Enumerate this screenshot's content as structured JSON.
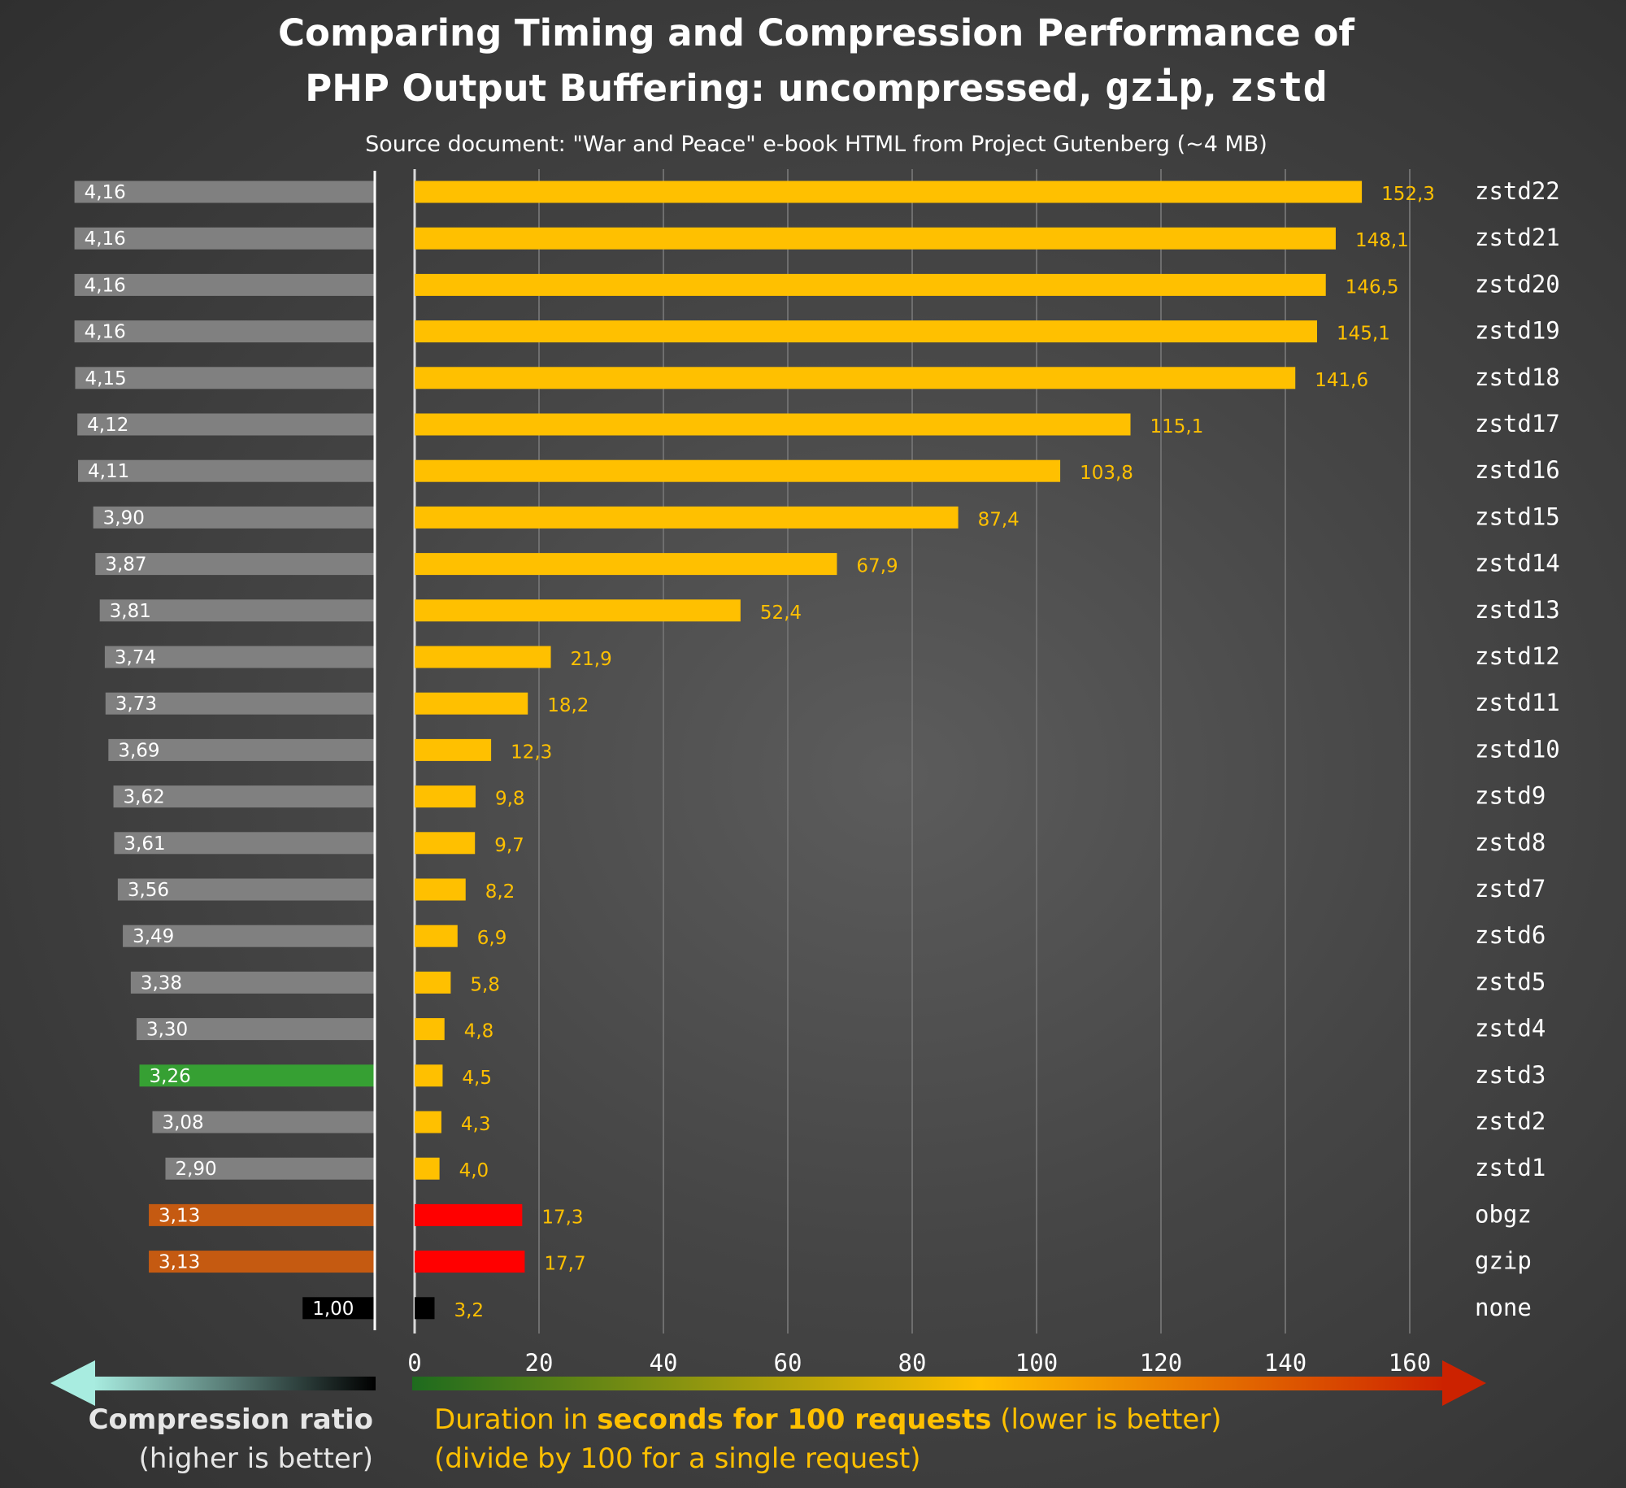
{
  "chart_data": {
    "type": "bar",
    "title_parts": [
      "Comparing Timing and Compression Performance of",
      "PHP Output Buffering:  uncompressed, ",
      "gzip",
      ", ",
      "zstd"
    ],
    "subtitle": "Source document: \"War and Peace\" e-book HTML from Project Gutenberg (~4 MB)",
    "categories": [
      "zstd22",
      "zstd21",
      "zstd20",
      "zstd19",
      "zstd18",
      "zstd17",
      "zstd16",
      "zstd15",
      "zstd14",
      "zstd13",
      "zstd12",
      "zstd11",
      "zstd10",
      "zstd9",
      "zstd8",
      "zstd7",
      "zstd6",
      "zstd5",
      "zstd4",
      "zstd3",
      "zstd2",
      "zstd1",
      "obgz",
      "gzip",
      "none"
    ],
    "series": [
      {
        "name": "Compression ratio",
        "values": [
          4.16,
          4.16,
          4.16,
          4.16,
          4.15,
          4.12,
          4.11,
          3.9,
          3.87,
          3.81,
          3.74,
          3.73,
          3.69,
          3.62,
          3.61,
          3.56,
          3.49,
          3.38,
          3.3,
          3.26,
          3.08,
          2.9,
          3.13,
          3.13,
          1.0
        ],
        "labels": [
          "4,16",
          "4,16",
          "4,16",
          "4,16",
          "4,15",
          "4,12",
          "4,11",
          "3,90",
          "3,87",
          "3,81",
          "3,74",
          "3,73",
          "3,69",
          "3,62",
          "3,61",
          "3,56",
          "3,49",
          "3,38",
          "3,30",
          "3,26",
          "3,08",
          "2,90",
          "3,13",
          "3,13",
          "1,00"
        ]
      },
      {
        "name": "Duration",
        "values": [
          152.3,
          148.1,
          146.5,
          145.1,
          141.6,
          115.1,
          103.8,
          87.4,
          67.9,
          52.4,
          21.9,
          18.2,
          12.3,
          9.8,
          9.7,
          8.2,
          6.9,
          5.8,
          4.8,
          4.5,
          4.3,
          4.0,
          17.3,
          17.7,
          3.2
        ],
        "labels": [
          "152,3",
          "148,1",
          "146,5",
          "145,1",
          "141,6",
          "115,1",
          "103,8",
          "87,4",
          "67,9",
          "52,4",
          "21,9",
          "18,2",
          "12,3",
          "9,8",
          "9,7",
          "8,2",
          "6,9",
          "5,8",
          "4,8",
          "4,5",
          "4,3",
          "4,0",
          "17,3",
          "17,7",
          "3,2"
        ]
      }
    ],
    "ratio_colors": [
      "#808080",
      "#808080",
      "#808080",
      "#808080",
      "#808080",
      "#808080",
      "#808080",
      "#808080",
      "#808080",
      "#808080",
      "#808080",
      "#808080",
      "#808080",
      "#808080",
      "#808080",
      "#808080",
      "#808080",
      "#808080",
      "#808080",
      "#36a033",
      "#808080",
      "#808080",
      "#c55a11",
      "#c55a11",
      "#000000"
    ],
    "duration_colors": [
      "#ffc000",
      "#ffc000",
      "#ffc000",
      "#ffc000",
      "#ffc000",
      "#ffc000",
      "#ffc000",
      "#ffc000",
      "#ffc000",
      "#ffc000",
      "#ffc000",
      "#ffc000",
      "#ffc000",
      "#ffc000",
      "#ffc000",
      "#ffc000",
      "#ffc000",
      "#ffc000",
      "#ffc000",
      "#ffc000",
      "#ffc000",
      "#ffc000",
      "#ff0000",
      "#ff0000",
      "#000000"
    ],
    "xlim": [
      0,
      160
    ],
    "ratio_xlim": [
      0,
      4.5
    ],
    "x_ticks": [
      0,
      20,
      40,
      60,
      80,
      100,
      120,
      140,
      160
    ],
    "grid": true,
    "left_axis_title": {
      "bold": "Compression ratio",
      "line2": "(higher is better)"
    },
    "right_axis_title": {
      "pre": "Duration in ",
      "bold": "seconds for 100 requests",
      "post": " (lower is better)",
      "line2": "(divide by 100 for a single request)"
    },
    "arrow_colors": {
      "left_start": "#a8ece0",
      "left_end": "#000000",
      "right_start": "#1e6b1e",
      "right_mid": "#ffc000",
      "right_end": "#cc2200"
    }
  }
}
